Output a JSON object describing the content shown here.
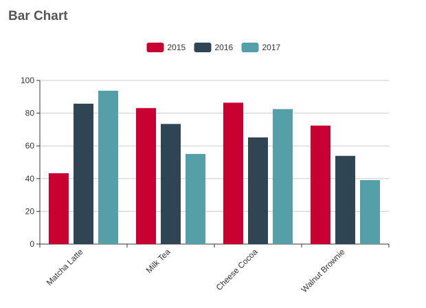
{
  "page": {
    "title": "Bar Chart"
  },
  "chart_data": {
    "type": "bar",
    "categories": [
      "Matcha Latte",
      "Milk Tea",
      "Cheese Cocoa",
      "Walnut Brownie"
    ],
    "series": [
      {
        "name": "2015",
        "values": [
          43.3,
          83.1,
          86.4,
          72.4
        ],
        "color": "#c80032"
      },
      {
        "name": "2016",
        "values": [
          85.8,
          73.4,
          65.2,
          53.9
        ],
        "color": "#2f4554"
      },
      {
        "name": "2017",
        "values": [
          93.7,
          55.1,
          82.5,
          39.1
        ],
        "color": "#55a0a8"
      }
    ],
    "ylim": [
      0,
      100
    ],
    "yticks": [
      0,
      20,
      40,
      60,
      80,
      100
    ],
    "grid": true,
    "legend": "top-center"
  }
}
